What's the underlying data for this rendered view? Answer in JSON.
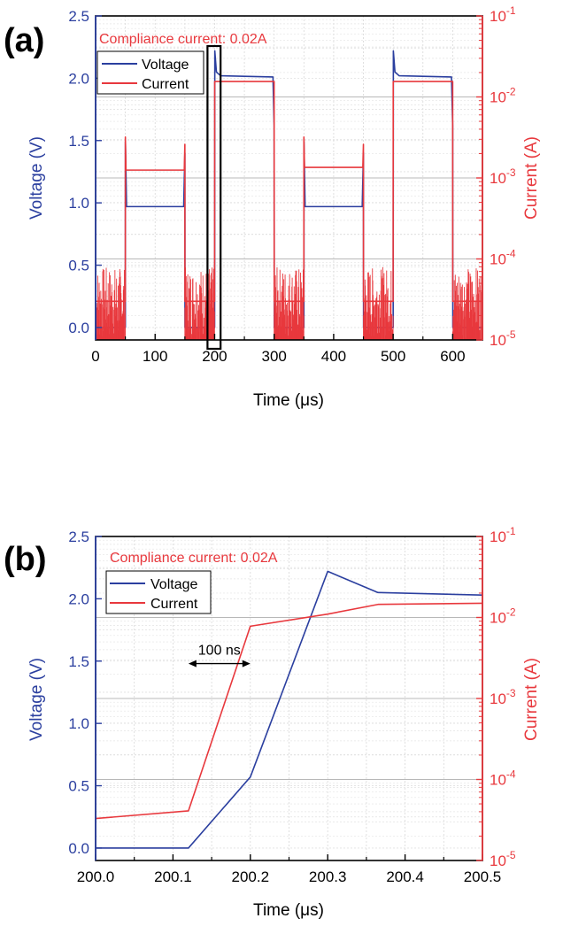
{
  "figure": {
    "panels": [
      {
        "panel_label": "(a)",
        "annotation": "Compliance current: 0.02A",
        "legend_placement": "top-left",
        "legend": [
          "Voltage",
          "Current"
        ]
      },
      {
        "panel_label": "(b)",
        "annotation": "Compliance current: 0.02A",
        "legend_placement": "top-left",
        "legend": [
          "Voltage",
          "Current"
        ],
        "arrow_label": "100 ns"
      }
    ]
  },
  "colors": {
    "voltage": "#2b3f9f",
    "current": "#e8383d",
    "axis": "#000000",
    "grid": "#cccccc"
  },
  "chart_data": [
    {
      "type": "line",
      "panel": "(a)",
      "xlabel": "Time (μs)",
      "ylabel_left": "Voltage (V)",
      "ylabel_right": "Current (A)",
      "xlim": [
        0,
        650
      ],
      "ylim_left": [
        -0.1,
        2.5
      ],
      "ylim_right": [
        1e-05,
        0.1
      ],
      "right_scale": "log",
      "grid": true,
      "x_ticks": [
        0,
        100,
        200,
        300,
        400,
        500,
        600
      ],
      "y_ticks_left": [
        "0.0",
        "0.5",
        "1.0",
        "1.5",
        "2.0",
        "2.5"
      ],
      "y_ticks_right": [
        "10-5",
        "10-4",
        "10-3",
        "10-2",
        "10-1"
      ],
      "highlight_box_x": [
        188,
        210
      ],
      "series": [
        {
          "name": "Voltage",
          "axis": "left",
          "x": [
            0,
            50,
            50.1,
            52,
            148,
            150,
            150.2,
            195,
            200,
            200.1,
            200.3,
            203,
            210,
            298,
            300,
            300.2,
            350,
            350.1,
            352,
            448,
            450,
            450.2,
            495,
            500,
            500.1,
            500.3,
            503,
            510,
            598,
            600,
            600.2,
            650
          ],
          "y": [
            0,
            0,
            1.49,
            0.97,
            0.97,
            1.4,
            0,
            0,
            0,
            0.57,
            2.22,
            2.05,
            2.02,
            2.01,
            1.62,
            0,
            0,
            1.49,
            0.97,
            0.97,
            1.4,
            0,
            0,
            0,
            0.57,
            2.22,
            2.05,
            2.02,
            2.01,
            1.62,
            0,
            0
          ]
        },
        {
          "name": "Current",
          "axis": "right",
          "x": [
            0,
            49.9,
            50,
            51,
            149,
            150,
            150.1,
            199.9,
            200.1,
            202,
            299,
            300,
            300.1,
            349.9,
            350,
            351,
            449,
            450,
            450.1,
            499.9,
            500.1,
            502,
            599,
            600,
            600.1,
            650
          ],
          "y": [
            3e-05,
            3e-05,
            0.0032,
            0.00125,
            0.00125,
            0.0026,
            3e-05,
            3e-05,
            0.0155,
            0.0155,
            0.0155,
            0.0155,
            3e-05,
            3e-05,
            0.0032,
            0.00135,
            0.00135,
            0.0026,
            3e-05,
            3e-05,
            0.0155,
            0.0155,
            0.0155,
            0.0155,
            3e-05,
            3e-05
          ],
          "noise_regions_x": [
            [
              0,
              50
            ],
            [
              150,
              200
            ],
            [
              300,
              350
            ],
            [
              450,
              500
            ],
            [
              600,
              650
            ]
          ],
          "noise_range": [
            1e-05,
            8e-05
          ]
        }
      ]
    },
    {
      "type": "line",
      "panel": "(b)",
      "xlabel": "Time (μs)",
      "ylabel_left": "Voltage (V)",
      "ylabel_right": "Current (A)",
      "xlim": [
        200.0,
        200.5
      ],
      "ylim_left": [
        -0.1,
        2.5
      ],
      "ylim_right": [
        1e-05,
        0.1
      ],
      "right_scale": "log",
      "grid": true,
      "x_ticks": [
        "200.0",
        "200.1",
        "200.2",
        "200.3",
        "200.4",
        "200.5"
      ],
      "y_ticks_left": [
        "0.0",
        "0.5",
        "1.0",
        "1.5",
        "2.0",
        "2.5"
      ],
      "y_ticks_right": [
        "10-5",
        "10-4",
        "10-3",
        "10-2",
        "10-1"
      ],
      "arrow_x": [
        200.12,
        200.2
      ],
      "arrow_y": 1.48,
      "series": [
        {
          "name": "Voltage",
          "axis": "left",
          "x": [
            200.0,
            200.12,
            200.2,
            200.3,
            200.365,
            200.5
          ],
          "y": [
            0.0,
            0.0,
            0.57,
            2.22,
            2.05,
            2.03
          ]
        },
        {
          "name": "Current",
          "axis": "right",
          "x": [
            200.0,
            200.12,
            200.2,
            200.3,
            200.365,
            200.5
          ],
          "y": [
            3.3e-05,
            4.1e-05,
            0.0078,
            0.011,
            0.0145,
            0.015
          ]
        }
      ]
    }
  ]
}
